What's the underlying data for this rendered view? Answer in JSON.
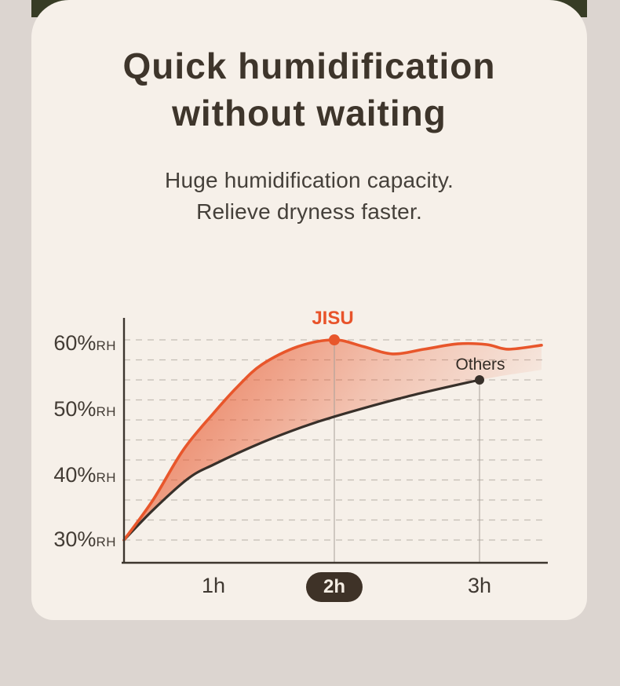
{
  "page": {
    "title_line1": "Quick humidification",
    "title_line2": "without waiting",
    "subtitle_line1": "Huge humidification capacity.",
    "subtitle_line2": "Relieve dryness faster."
  },
  "colors": {
    "page_background": "#dcd5d0",
    "card_background": "#f6f0e9",
    "top_strip_green": "#373c25",
    "title_text": "#3e352b",
    "subtitle_text": "#45403a",
    "accent_orange": "#e8562b",
    "dark_line": "#38302a",
    "grid_line": "#b7b0a8",
    "guide_line": "#a8a099",
    "axis_line": "#3d362e",
    "pill_background": "#3e3227",
    "pill_text": "#f4ede3"
  },
  "chart_data": {
    "type": "area",
    "x_unit": "hours",
    "y_unit": "%RH",
    "xlim": [
      0.26,
      3.43
    ],
    "ylim": [
      30,
      62
    ],
    "grid": {
      "horizontal_lines": 11,
      "style": "dashed",
      "between_values": [
        60,
        30
      ]
    },
    "x_ticks": [
      {
        "label": "1h",
        "t": 1,
        "highlighted": false
      },
      {
        "label": "2h",
        "t": 2,
        "highlighted": true
      },
      {
        "label": "3h",
        "t": 3,
        "highlighted": false
      }
    ],
    "y_ticks": [
      {
        "label": "60%",
        "unit": "RH",
        "value": 60
      },
      {
        "label": "50%",
        "unit": "RH",
        "value": 50
      },
      {
        "label": "40%",
        "unit": "RH",
        "value": 40
      },
      {
        "label": "30%",
        "unit": "RH",
        "value": 30
      }
    ],
    "series": [
      {
        "name": "JISU",
        "color": "#e8562b",
        "points": [
          [
            0.26,
            30
          ],
          [
            0.5,
            36
          ],
          [
            0.75,
            43.5
          ],
          [
            1.0,
            49
          ],
          [
            1.2,
            53
          ],
          [
            1.4,
            56.3
          ],
          [
            1.7,
            59
          ],
          [
            2.0,
            60
          ],
          [
            2.2,
            59.0
          ],
          [
            2.4,
            57.9
          ],
          [
            2.62,
            58.6
          ],
          [
            2.85,
            59.4
          ],
          [
            3.05,
            59.3
          ],
          [
            3.2,
            58.6
          ],
          [
            3.43,
            59.2
          ]
        ],
        "marker": {
          "t": 2,
          "rh": 60
        }
      },
      {
        "name": "Others",
        "color": "#38302a",
        "points": [
          [
            0.26,
            30
          ],
          [
            0.5,
            34.5
          ],
          [
            0.79,
            39.2
          ],
          [
            1.0,
            41.3
          ],
          [
            1.4,
            44.6
          ],
          [
            1.7,
            46.7
          ],
          [
            2.0,
            48.5
          ],
          [
            2.5,
            51.5
          ],
          [
            3.0,
            54
          ]
        ],
        "marker": {
          "t": 3,
          "rh": 54
        }
      }
    ],
    "area_between": {
      "fill_from": "JISU",
      "fill_to": "Others",
      "gradient": [
        "rgba(232,86,43,0.82)",
        "rgba(232,86,43,0)"
      ],
      "extension_point": [
        3.43,
        55.5
      ]
    }
  }
}
